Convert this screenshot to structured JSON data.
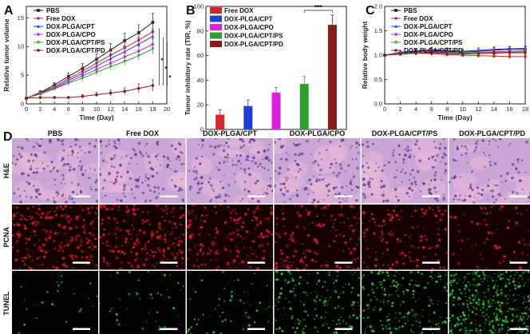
{
  "panel_labels": {
    "A": "A",
    "B": "B",
    "C": "C",
    "D": "D"
  },
  "colors": {
    "PBS": "#1a1a1a",
    "Free DOX": "#d62728",
    "DOX-PLGA/CPT": "#1f3fd6",
    "DOX-PLGA/CPO": "#e020e0",
    "DOX-PLGA/CPT/PS": "#2ca02c",
    "DOX-PLGA/CPT/PD": "#8b1a1a"
  },
  "chart_data": [
    {
      "id": "A",
      "type": "line",
      "title": "",
      "xlabel": "Time (Day)",
      "ylabel": "Relative tumor volume",
      "xlim": [
        0,
        20
      ],
      "ylim": [
        0,
        17
      ],
      "xticks": [
        "0",
        "2",
        "4",
        "6",
        "8",
        "10",
        "12",
        "14",
        "16",
        "18",
        "20"
      ],
      "yticks": [
        "0",
        "5",
        "10",
        "15"
      ],
      "x": [
        0,
        2,
        4,
        6,
        8,
        10,
        12,
        14,
        16,
        18
      ],
      "series": [
        {
          "name": "PBS",
          "values": [
            1.0,
            2.0,
            3.3,
            4.8,
            6.2,
            7.8,
            9.4,
            11.0,
            12.4,
            14.2
          ],
          "err": [
            0.1,
            0.3,
            0.4,
            0.6,
            0.8,
            0.9,
            1.1,
            1.3,
            1.4,
            1.6
          ]
        },
        {
          "name": "Free DOX",
          "values": [
            1.0,
            1.9,
            3.0,
            4.4,
            5.7,
            7.1,
            8.5,
            9.8,
            11.1,
            12.6
          ],
          "err": [
            0.1,
            0.3,
            0.4,
            0.5,
            0.7,
            0.8,
            0.9,
            1.1,
            1.2,
            1.4
          ]
        },
        {
          "name": "DOX-PLGA/CPT",
          "values": [
            1.0,
            1.8,
            2.8,
            4.1,
            5.3,
            6.6,
            7.9,
            9.1,
            10.4,
            11.8
          ],
          "err": [
            0.1,
            0.2,
            0.3,
            0.5,
            0.6,
            0.7,
            0.8,
            1.0,
            1.1,
            1.2
          ]
        },
        {
          "name": "DOX-PLGA/CPO",
          "values": [
            1.0,
            1.8,
            2.7,
            3.8,
            4.9,
            6.0,
            7.1,
            8.2,
            9.2,
            10.4
          ],
          "err": [
            0.1,
            0.2,
            0.3,
            0.4,
            0.5,
            0.6,
            0.7,
            0.8,
            0.9,
            1.0
          ]
        },
        {
          "name": "DOX-PLGA/CPT/PS",
          "values": [
            1.0,
            1.7,
            2.6,
            3.6,
            4.5,
            5.5,
            6.5,
            7.4,
            8.4,
            9.6
          ],
          "err": [
            0.1,
            0.2,
            0.3,
            0.4,
            0.5,
            0.5,
            0.6,
            0.7,
            0.8,
            0.9
          ]
        },
        {
          "name": "DOX-PLGA/CPT/PD",
          "values": [
            1.0,
            1.1,
            1.1,
            1.1,
            1.3,
            1.6,
            1.9,
            2.2,
            2.7,
            3.2
          ],
          "err": [
            0.1,
            0.1,
            0.1,
            0.2,
            0.3,
            0.4,
            0.5,
            0.6,
            0.8,
            1.0
          ]
        }
      ],
      "annotations": [
        "*",
        "*",
        "*"
      ]
    },
    {
      "id": "B",
      "type": "bar",
      "title": "",
      "xlabel": "",
      "ylabel": "Tumor inhibitory rate (TIR, %)",
      "ylim": [
        0,
        100
      ],
      "yticks": [
        "0",
        "20",
        "40",
        "60",
        "80",
        "100"
      ],
      "categories": [
        "Free DOX",
        "DOX-PLGA/CPT",
        "DOX-PLGA/CPO",
        "DOX-PLGA/CPT/PS",
        "DOX-PLGA/CPT/PD"
      ],
      "values": [
        12,
        19,
        30,
        37,
        85
      ],
      "err": [
        4,
        5,
        4,
        6,
        8
      ],
      "annotations": [
        "***"
      ]
    },
    {
      "id": "C",
      "type": "line",
      "title": "",
      "xlabel": "Time (Day)",
      "ylabel": "Relative body weight",
      "xlim": [
        0,
        18
      ],
      "ylim": [
        0,
        2.0
      ],
      "xticks": [
        "0",
        "2",
        "4",
        "6",
        "8",
        "10",
        "12",
        "14",
        "16",
        "18"
      ],
      "yticks": [
        "0.0",
        "0.5",
        "1.0",
        "1.5",
        "2.0"
      ],
      "x": [
        0,
        2,
        4,
        6,
        8,
        10,
        12,
        14,
        16,
        18
      ],
      "series": [
        {
          "name": "PBS",
          "values": [
            1.0,
            1.05,
            1.08,
            1.1,
            1.08,
            1.06,
            1.08,
            1.1,
            1.12,
            1.12
          ],
          "err": [
            0.02,
            0.04,
            0.05,
            0.05,
            0.05,
            0.05,
            0.05,
            0.05,
            0.05,
            0.05
          ]
        },
        {
          "name": "Free DOX",
          "values": [
            1.0,
            1.02,
            1.04,
            1.03,
            1.01,
            1.0,
            0.99,
            0.98,
            0.97,
            0.97
          ],
          "err": [
            0.02,
            0.03,
            0.04,
            0.04,
            0.04,
            0.04,
            0.04,
            0.04,
            0.04,
            0.04
          ]
        },
        {
          "name": "DOX-PLGA/CPT",
          "values": [
            1.0,
            1.06,
            1.09,
            1.11,
            1.1,
            1.08,
            1.1,
            1.12,
            1.13,
            1.14
          ],
          "err": [
            0.02,
            0.04,
            0.05,
            0.05,
            0.05,
            0.05,
            0.05,
            0.05,
            0.05,
            0.05
          ]
        },
        {
          "name": "DOX-PLGA/CPO",
          "values": [
            1.0,
            1.04,
            1.07,
            1.08,
            1.06,
            1.05,
            1.06,
            1.07,
            1.08,
            1.09
          ],
          "err": [
            0.02,
            0.03,
            0.04,
            0.04,
            0.04,
            0.04,
            0.04,
            0.04,
            0.04,
            0.04
          ]
        },
        {
          "name": "DOX-PLGA/CPT/PS",
          "values": [
            1.0,
            1.03,
            1.06,
            1.07,
            1.05,
            1.04,
            1.05,
            1.06,
            1.06,
            1.07
          ],
          "err": [
            0.02,
            0.03,
            0.04,
            0.04,
            0.04,
            0.04,
            0.04,
            0.04,
            0.04,
            0.04
          ]
        },
        {
          "name": "DOX-PLGA/CPT/PD",
          "values": [
            1.0,
            1.02,
            1.04,
            1.05,
            1.03,
            1.02,
            1.03,
            1.04,
            1.05,
            1.05
          ],
          "err": [
            0.02,
            0.03,
            0.03,
            0.04,
            0.04,
            0.04,
            0.04,
            0.04,
            0.04,
            0.04
          ]
        }
      ]
    }
  ],
  "histology": {
    "columns": [
      "PBS",
      "Free DOX",
      "DOX-PLGA/CPT",
      "DOX-PLGA/CPO",
      "DOX-PLGA/CPT/PS",
      "DOX-PLGA/CPT/PD"
    ],
    "rows": [
      {
        "label": "H&E",
        "style": "he",
        "density": [
          0.55,
          0.55,
          0.55,
          0.5,
          0.45,
          0.3
        ]
      },
      {
        "label": "PCNA",
        "style": "pcna",
        "density": [
          0.75,
          0.7,
          0.6,
          0.5,
          0.4,
          0.2
        ]
      },
      {
        "label": "TUNEL",
        "style": "tunel",
        "density": [
          0.05,
          0.08,
          0.12,
          0.4,
          0.45,
          0.9
        ]
      }
    ]
  }
}
